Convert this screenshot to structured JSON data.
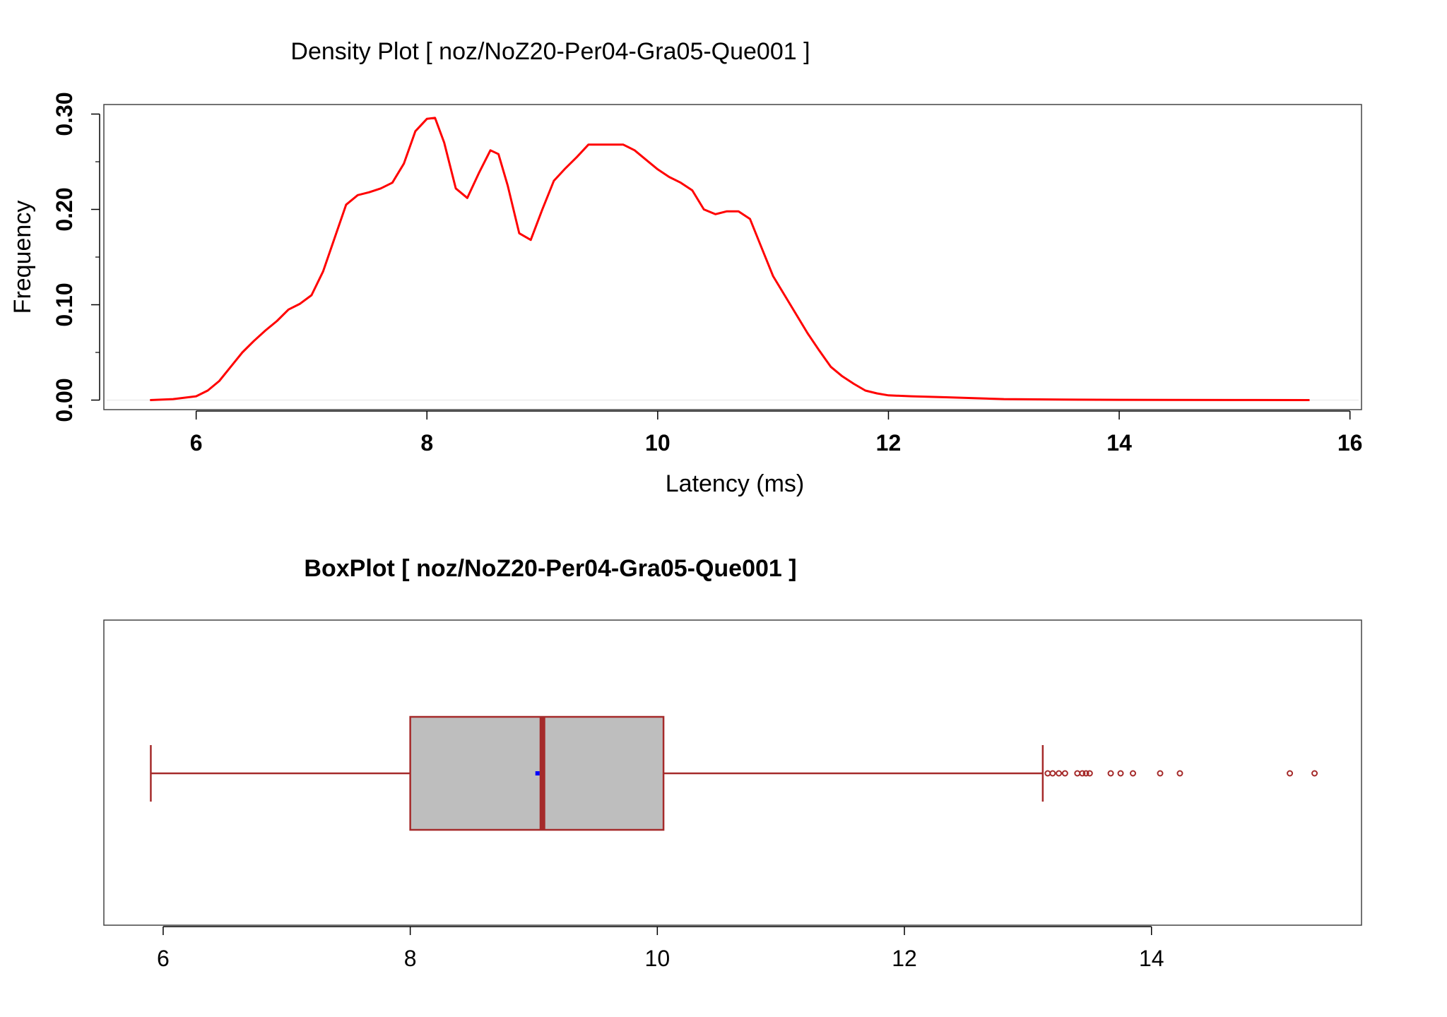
{
  "chart_data": [
    {
      "type": "line",
      "title": "Density Plot [ noz/NoZ20-Per04-Gra05-Que001 ]",
      "xlabel": "Latency (ms)",
      "ylabel": "Frequency",
      "xlim": [
        5.2,
        16.1
      ],
      "ylim": [
        -0.01,
        0.31
      ],
      "x_ticks": [
        "6",
        "8",
        "10",
        "12",
        "14",
        "16"
      ],
      "x_tick_values": [
        6,
        8,
        10,
        12,
        14,
        16
      ],
      "y_ticks": [
        "0.00",
        "0.10",
        "0.20",
        "0.30"
      ],
      "y_tick_values": [
        0.0,
        0.1,
        0.2,
        0.3
      ],
      "y_minor_ticks": [
        0.05,
        0.15,
        0.25
      ],
      "grid": false,
      "series": [
        {
          "color": "#ff0000",
          "x": [
            5.6,
            5.8,
            6.0,
            6.1,
            6.2,
            6.3,
            6.4,
            6.5,
            6.6,
            6.7,
            6.8,
            6.9,
            7.0,
            7.1,
            7.2,
            7.3,
            7.4,
            7.5,
            7.6,
            7.7,
            7.8,
            7.9,
            8.0,
            8.07,
            8.15,
            8.25,
            8.35,
            8.45,
            8.55,
            8.62,
            8.7,
            8.8,
            8.9,
            9.0,
            9.1,
            9.2,
            9.3,
            9.4,
            9.5,
            9.6,
            9.7,
            9.8,
            9.9,
            10.0,
            10.1,
            10.2,
            10.3,
            10.4,
            10.5,
            10.6,
            10.7,
            10.8,
            10.9,
            11.0,
            11.1,
            11.2,
            11.3,
            11.4,
            11.5,
            11.6,
            11.7,
            11.8,
            11.9,
            12.0,
            12.2,
            12.5,
            13.0,
            13.5,
            14.0,
            15.0,
            15.65
          ],
          "y": [
            0.0,
            0.001,
            0.004,
            0.01,
            0.02,
            0.035,
            0.05,
            0.062,
            0.073,
            0.083,
            0.095,
            0.101,
            0.11,
            0.135,
            0.17,
            0.205,
            0.215,
            0.218,
            0.222,
            0.228,
            0.248,
            0.282,
            0.295,
            0.296,
            0.27,
            0.222,
            0.212,
            0.238,
            0.262,
            0.258,
            0.225,
            0.175,
            0.168,
            0.2,
            0.23,
            0.243,
            0.255,
            0.268,
            0.268,
            0.268,
            0.268,
            0.262,
            0.252,
            0.242,
            0.234,
            0.228,
            0.22,
            0.2,
            0.195,
            0.198,
            0.198,
            0.19,
            0.16,
            0.13,
            0.11,
            0.09,
            0.07,
            0.052,
            0.035,
            0.025,
            0.017,
            0.01,
            0.007,
            0.005,
            0.004,
            0.003,
            0.001,
            0.0005,
            0.0003,
            0.0001,
            0.0
          ]
        }
      ]
    },
    {
      "type": "box",
      "title": "BoxPlot [ noz/NoZ20-Per04-Gra05-Que001 ]",
      "xlim": [
        5.52,
        15.7
      ],
      "x_ticks": [
        "6",
        "8",
        "10",
        "12",
        "14"
      ],
      "x_tick_values": [
        6,
        8,
        10,
        12,
        14
      ],
      "whisker_low": 5.9,
      "q1": 8.0,
      "median": 9.07,
      "q3": 10.05,
      "whisker_high": 13.12,
      "mean": 9.03,
      "outliers": [
        13.16,
        13.2,
        13.25,
        13.3,
        13.4,
        13.44,
        13.47,
        13.5,
        13.67,
        13.75,
        13.85,
        14.07,
        14.23,
        15.12,
        15.32
      ],
      "box_fill": "#bebebe",
      "box_line": "#a52a2a",
      "mean_color": "#0000ff"
    }
  ]
}
